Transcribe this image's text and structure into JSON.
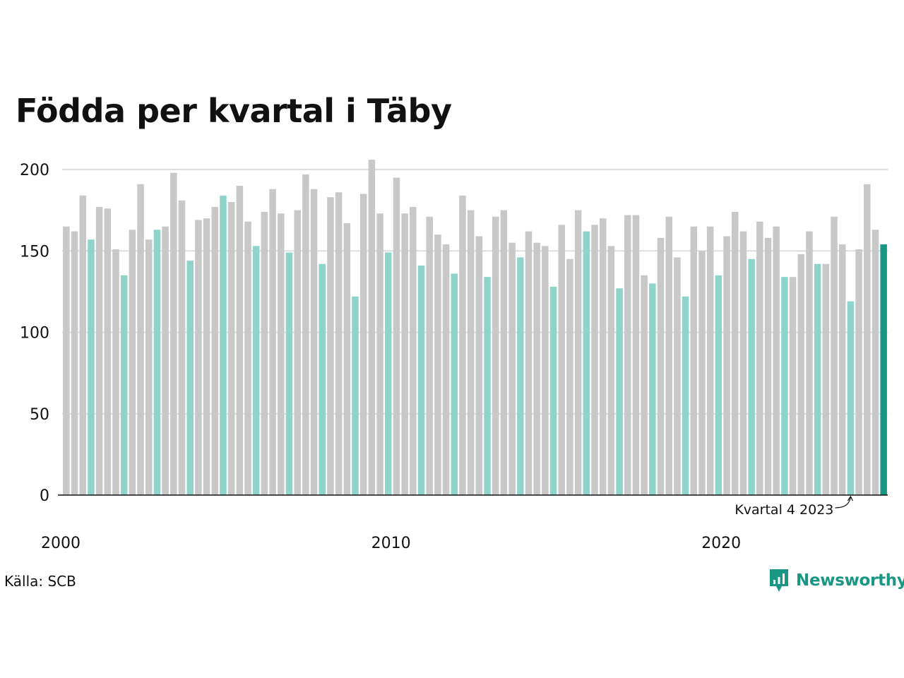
{
  "title": "Födda per kvartal i Täby",
  "source_label": "Källa: SCB",
  "brand": {
    "name": "Newsworthy",
    "icon": "newsworthy-logo-icon"
  },
  "annotation": {
    "text": "Kvartal 4 2023",
    "target_year": 2023,
    "target_quarter": 4
  },
  "colors": {
    "default_bar": "#c8c8c8",
    "q4_bar": "#8ed4cb",
    "latest_bar": "#1a9685",
    "gridline": "#dddddd",
    "axis": "#111111",
    "brand": "#1a9685"
  },
  "chart_data": {
    "type": "bar",
    "title": "Födda per kvartal i Täby",
    "xlabel": "",
    "ylabel": "",
    "ylim": [
      0,
      200
    ],
    "yticks": [
      0,
      50,
      100,
      150,
      200
    ],
    "xticks": [
      "2000",
      "2010",
      "2020"
    ],
    "grid": true,
    "legend": "none",
    "start_year": 2000,
    "highlight_quarter": 4,
    "series": [
      {
        "values": [
          165,
          162,
          184,
          157,
          177,
          176,
          151,
          135,
          163,
          191,
          157,
          163,
          165,
          198,
          181,
          144,
          169,
          170,
          177,
          184,
          180,
          190,
          168,
          153,
          174,
          188,
          173,
          149,
          175,
          197,
          188,
          142,
          183,
          186,
          167,
          122,
          185,
          206,
          173,
          149,
          195,
          173,
          177,
          141,
          171,
          160,
          154,
          136,
          184,
          175,
          159,
          134,
          171,
          175,
          155,
          146,
          162,
          155,
          153,
          128,
          166,
          145,
          175,
          162,
          166,
          170,
          153,
          127,
          172,
          172,
          135,
          130,
          158,
          171,
          146,
          122,
          165,
          150,
          165,
          135,
          159,
          174,
          162,
          145,
          168,
          158,
          165,
          134,
          134,
          148,
          162,
          142,
          142,
          171,
          154,
          119,
          151,
          191,
          163,
          154
        ]
      }
    ]
  }
}
